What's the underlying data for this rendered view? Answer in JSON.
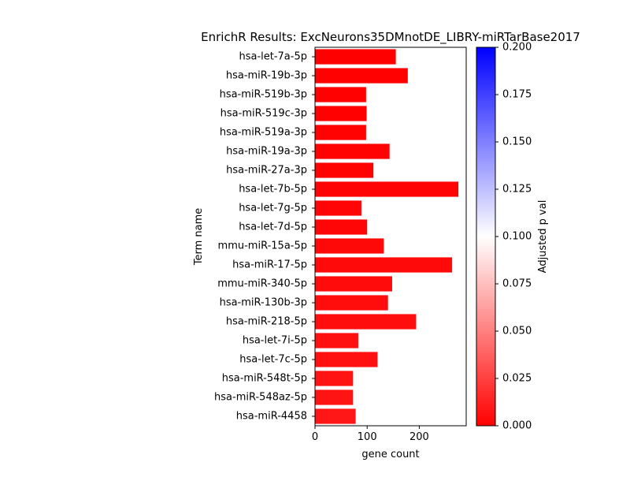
{
  "chart_data": {
    "type": "bar",
    "orientation": "horizontal",
    "title": "EnrichR Results: ExcNeurons35DMnotDE_LIBRY-miRTarBase2017",
    "xlabel": "gene count",
    "ylabel": "Term name",
    "xlim": [
      0,
      290
    ],
    "xticks": [
      0,
      100,
      200
    ],
    "categories": [
      "hsa-let-7a-5p",
      "hsa-miR-19b-3p",
      "hsa-miR-519b-3p",
      "hsa-miR-519c-3p",
      "hsa-miR-519a-3p",
      "hsa-miR-19a-3p",
      "hsa-miR-27a-3p",
      "hsa-let-7b-5p",
      "hsa-let-7g-5p",
      "hsa-let-7d-5p",
      "mmu-miR-15a-5p",
      "hsa-miR-17-5p",
      "mmu-miR-340-5p",
      "hsa-miR-130b-3p",
      "hsa-miR-218-5p",
      "hsa-let-7i-5p",
      "hsa-let-7c-5p",
      "hsa-miR-548t-5p",
      "hsa-miR-548az-5p",
      "hsa-miR-4458"
    ],
    "values": [
      155,
      178,
      98,
      99,
      98,
      143,
      112,
      275,
      89,
      100,
      132,
      263,
      148,
      140,
      194,
      83,
      120,
      73,
      73,
      78
    ],
    "adjusted_p": [
      0.0001,
      0.0002,
      0.0003,
      0.0004,
      0.0006,
      0.0009,
      0.0011,
      0.0016,
      0.002,
      0.0025,
      0.003,
      0.004,
      0.0045,
      0.005,
      0.0055,
      0.0062,
      0.0068,
      0.0075,
      0.008,
      0.0085
    ],
    "colorbar": {
      "label": "Adjusted p val",
      "range": [
        0,
        0.2
      ],
      "ticks": [
        "0.000",
        "0.025",
        "0.050",
        "0.075",
        "0.100",
        "0.125",
        "0.150",
        "0.175",
        "0.200"
      ],
      "colors": {
        "low": "#ff0000",
        "mid": "#ffffff",
        "high": "#0000ff"
      }
    }
  }
}
